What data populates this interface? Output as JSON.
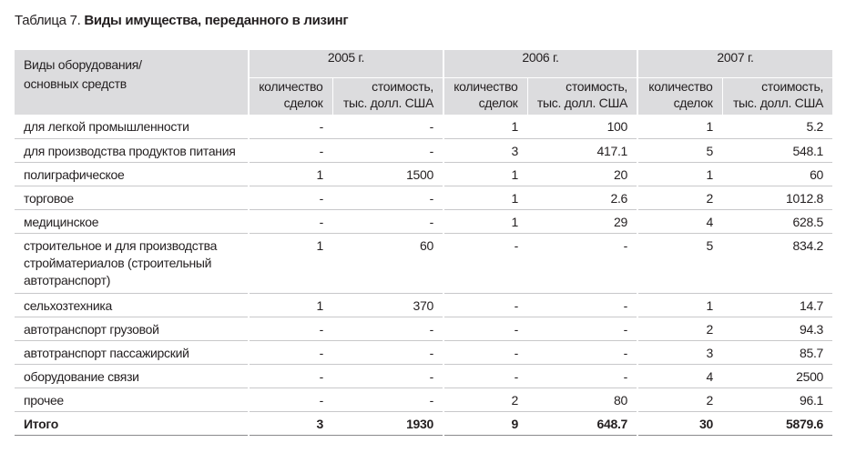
{
  "caption": {
    "prefix": "Таблица 7.",
    "title": "Виды имущества, переданного в лизинг"
  },
  "header": {
    "category_label_line1": "Виды оборудования/",
    "category_label_line2": "основных средств",
    "years": [
      "2005 г.",
      "2006 г.",
      "2007 г."
    ],
    "count_label_line1": "количество",
    "count_label_line2": "сделок",
    "value_label_line1": "стоимость,",
    "value_label_line2": "тыс. долл. США"
  },
  "rows": [
    {
      "name": [
        "для легкой промышленности"
      ],
      "cells": [
        "-",
        "-",
        "1",
        "100",
        "1",
        "5.2"
      ]
    },
    {
      "name": [
        "для производства продуктов питания"
      ],
      "cells": [
        "-",
        "-",
        "3",
        "417.1",
        "5",
        "548.1"
      ]
    },
    {
      "name": [
        "полиграфическое"
      ],
      "cells": [
        "1",
        "1500",
        "1",
        "20",
        "1",
        "60"
      ]
    },
    {
      "name": [
        "торговое"
      ],
      "cells": [
        "-",
        "-",
        "1",
        "2.6",
        "2",
        "1012.8"
      ]
    },
    {
      "name": [
        "медицинское"
      ],
      "cells": [
        "-",
        "-",
        "1",
        "29",
        "4",
        "628.5"
      ]
    },
    {
      "name": [
        "строительное и для производства",
        "стройматериалов (строительный",
        "автотранспорт)"
      ],
      "cells": [
        "1",
        "60",
        "-",
        "-",
        "5",
        "834.2"
      ]
    },
    {
      "name": [
        "сельхозтехника"
      ],
      "cells": [
        "1",
        "370",
        "-",
        "-",
        "1",
        "14.7"
      ]
    },
    {
      "name": [
        "автотранспорт грузовой"
      ],
      "cells": [
        "-",
        "-",
        "-",
        "-",
        "2",
        "94.3"
      ]
    },
    {
      "name": [
        "автотранспорт пассажирский"
      ],
      "cells": [
        "-",
        "-",
        "-",
        "-",
        "3",
        "85.7"
      ]
    },
    {
      "name": [
        "оборудование связи"
      ],
      "cells": [
        "-",
        "-",
        "-",
        "-",
        "4",
        "2500"
      ]
    },
    {
      "name": [
        "прочее"
      ],
      "cells": [
        "-",
        "-",
        "2",
        "80",
        "2",
        "96.1"
      ]
    }
  ],
  "total": {
    "name": "Итого",
    "cells": [
      "3",
      "1930",
      "9",
      "648.7",
      "30",
      "5879.6"
    ]
  }
}
